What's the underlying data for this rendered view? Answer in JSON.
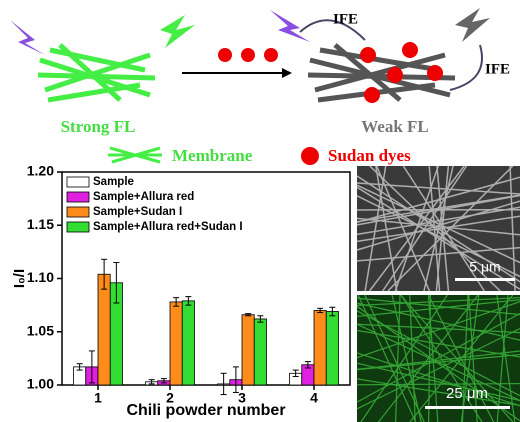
{
  "schematic": {
    "ife_top": "IFE",
    "ife_right": "IFE",
    "strong": "Strong FL",
    "weak": "Weak FL",
    "membrane": "Membrane",
    "dyes": "Sudan dyes"
  },
  "micrographs": [
    {
      "scale": "5 μm"
    },
    {
      "scale": "25 μm"
    }
  ],
  "chart_data": {
    "type": "bar",
    "categories": [
      "1",
      "2",
      "3",
      "4"
    ],
    "x_label": "Chili powder number",
    "y_label": "I₀/I",
    "ylim": [
      1.0,
      1.2
    ],
    "yticks": [
      {
        "value": 1.0,
        "label": "1.00"
      },
      {
        "value": 1.05,
        "label": "1.05"
      },
      {
        "value": 1.1,
        "label": "1.10"
      },
      {
        "value": 1.15,
        "label": "1.15"
      },
      {
        "value": 1.2,
        "label": "1.20"
      }
    ],
    "grid": false,
    "legend": "upper left",
    "series": [
      {
        "name": "Sample",
        "color": "#ffffff",
        "values": [
          1.017,
          1.003,
          1.001,
          1.011
        ],
        "errors": [
          0.003,
          0.002,
          0.01,
          0.003
        ]
      },
      {
        "name": "Sample+Allura red",
        "color": "#e020e0",
        "values": [
          1.017,
          1.004,
          1.005,
          1.019
        ],
        "errors": [
          0.015,
          0.002,
          0.012,
          0.003
        ]
      },
      {
        "name": "Sample+Sudan I",
        "color": "#ff8c1a",
        "values": [
          1.104,
          1.078,
          1.066,
          1.07
        ],
        "errors": [
          0.014,
          0.004,
          0.001,
          0.002
        ]
      },
      {
        "name": "Sample+Allura red+Sudan I",
        "color": "#33dd33",
        "values": [
          1.096,
          1.079,
          1.062,
          1.069
        ],
        "errors": [
          0.019,
          0.004,
          0.003,
          0.004
        ]
      }
    ]
  }
}
